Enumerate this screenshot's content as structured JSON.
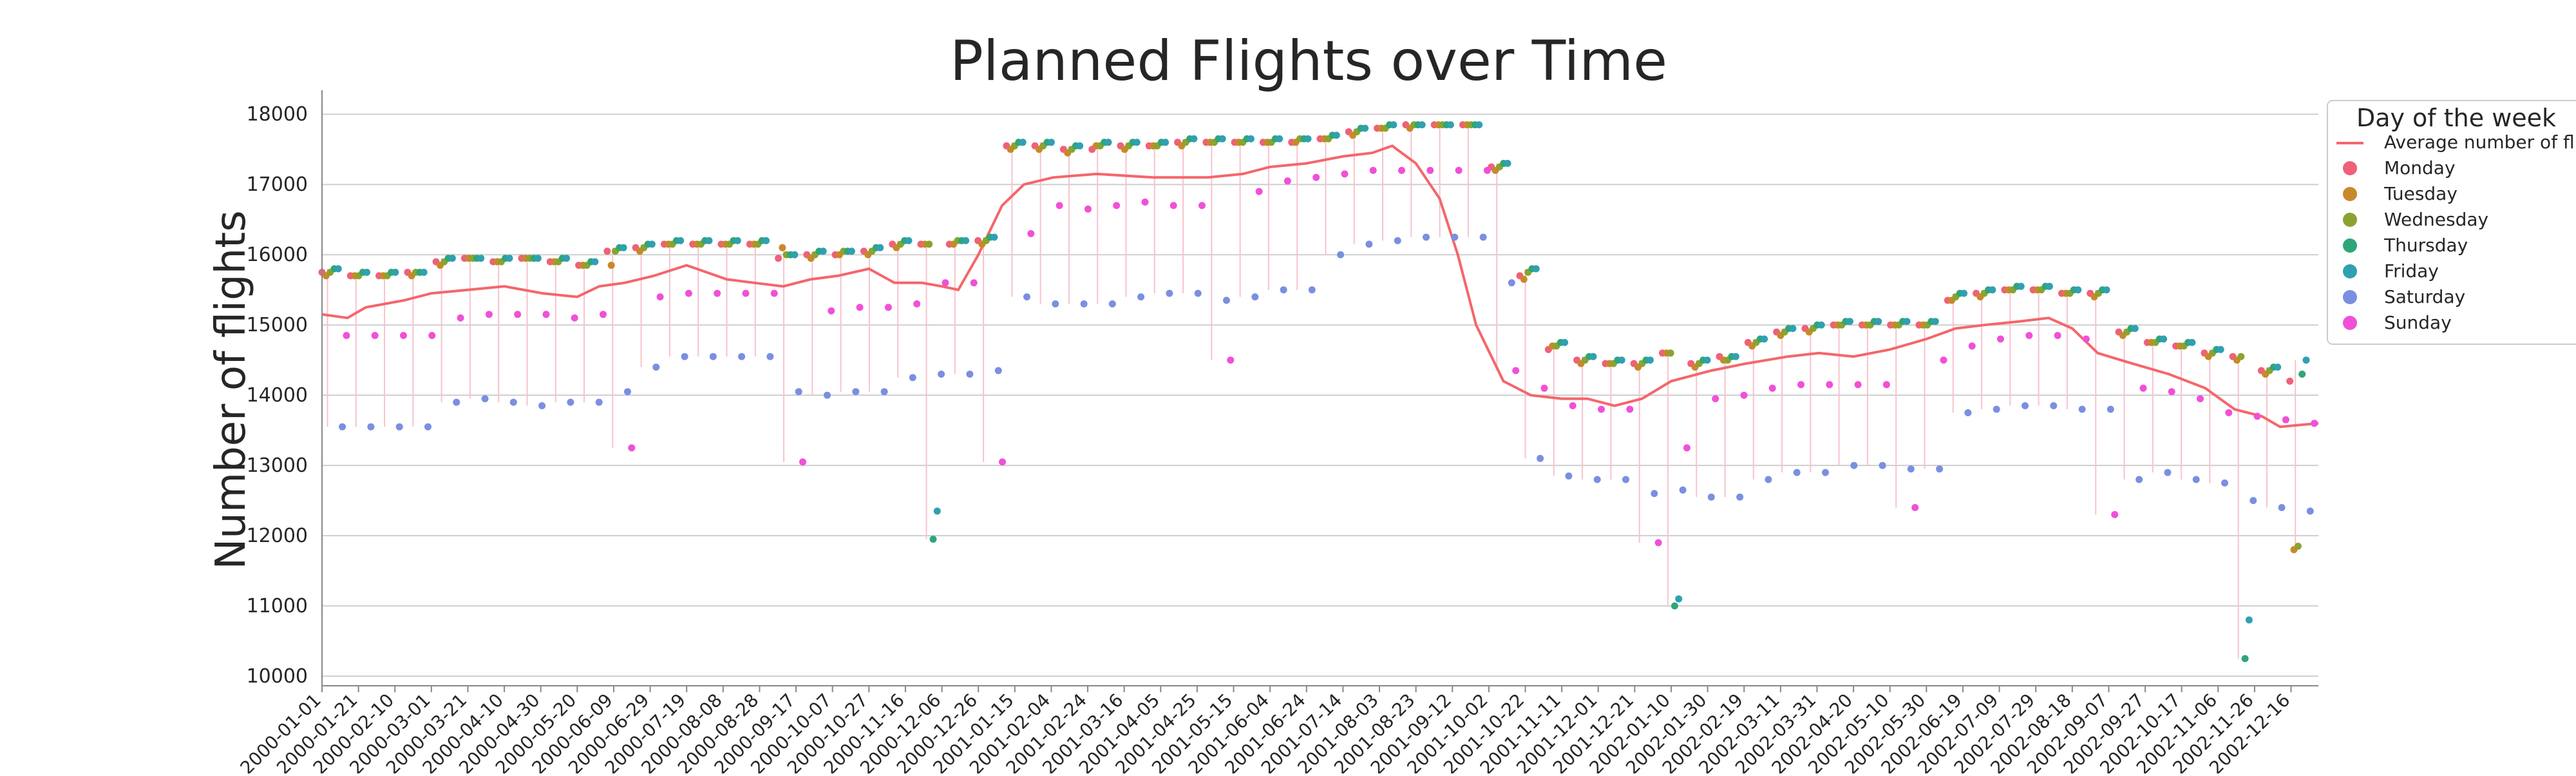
{
  "chart_data": {
    "type": "scatter",
    "title": "Planned Flights over Time",
    "xlabel": "",
    "ylabel": "Number of flights",
    "ylim": [
      9900,
      18250
    ],
    "xlim": [
      "2000-01-01",
      "2002-12-31"
    ],
    "grid": "horizontal",
    "legend_position": "top-right",
    "yticks": [
      10000,
      11000,
      12000,
      13000,
      14000,
      15000,
      16000,
      17000,
      18000
    ],
    "xticks": [
      "2000-01-01",
      "2000-01-21",
      "2000-02-10",
      "2000-03-01",
      "2000-03-21",
      "2000-04-10",
      "2000-04-30",
      "2000-05-20",
      "2000-06-09",
      "2000-06-29",
      "2000-07-19",
      "2000-08-08",
      "2000-08-28",
      "2000-09-17",
      "2000-10-07",
      "2000-10-27",
      "2000-11-16",
      "2000-12-06",
      "2000-12-26",
      "2001-01-15",
      "2001-02-04",
      "2001-02-24",
      "2001-03-16",
      "2001-04-05",
      "2001-04-25",
      "2001-05-15",
      "2001-06-04",
      "2001-06-24",
      "2001-07-14",
      "2001-08-03",
      "2001-08-23",
      "2001-09-12",
      "2001-10-02",
      "2001-10-22",
      "2001-11-11",
      "2001-12-01",
      "2001-12-21",
      "2002-01-10",
      "2002-01-30",
      "2002-02-19",
      "2002-03-11",
      "2002-03-31",
      "2002-04-20",
      "2002-05-10",
      "2002-05-30",
      "2002-06-19",
      "2002-07-09",
      "2002-07-29",
      "2002-08-18",
      "2002-09-07",
      "2002-09-27",
      "2002-10-17",
      "2002-11-06",
      "2002-11-26",
      "2002-12-16"
    ],
    "legend_title": "Day of the week",
    "line_series": {
      "name": "Average number of flights",
      "color": "#f4666b",
      "x": [
        "2000-01-01",
        "2000-01-15",
        "2000-01-25",
        "2000-02-15",
        "2000-03-01",
        "2000-03-21",
        "2000-04-10",
        "2000-05-01",
        "2000-05-20",
        "2000-06-01",
        "2000-06-15",
        "2000-07-01",
        "2000-07-19",
        "2000-07-30",
        "2000-08-10",
        "2000-08-25",
        "2000-09-10",
        "2000-09-25",
        "2000-10-10",
        "2000-10-27",
        "2000-11-10",
        "2000-11-25",
        "2000-12-06",
        "2000-12-15",
        "2000-12-26",
        "2001-01-08",
        "2001-01-20",
        "2001-02-05",
        "2001-03-01",
        "2001-04-01",
        "2001-05-01",
        "2001-05-20",
        "2001-06-04",
        "2001-06-24",
        "2001-07-14",
        "2001-07-30",
        "2001-08-10",
        "2001-08-23",
        "2001-09-05",
        "2001-09-15",
        "2001-09-25",
        "2001-10-10",
        "2001-10-25",
        "2001-11-11",
        "2001-11-25",
        "2001-12-10",
        "2001-12-25",
        "2002-01-10",
        "2002-02-01",
        "2002-02-20",
        "2002-03-15",
        "2002-04-01",
        "2002-04-20",
        "2002-05-10",
        "2002-05-30",
        "2002-06-15",
        "2002-07-01",
        "2002-07-20",
        "2002-08-05",
        "2002-08-18",
        "2002-09-01",
        "2002-09-20",
        "2002-10-10",
        "2002-10-30",
        "2002-11-15",
        "2002-11-30",
        "2002-12-10",
        "2002-12-31"
      ],
      "y": [
        15150,
        15100,
        15250,
        15350,
        15450,
        15500,
        15550,
        15450,
        15400,
        15550,
        15600,
        15700,
        15850,
        15750,
        15650,
        15600,
        15550,
        15650,
        15700,
        15800,
        15600,
        15600,
        15550,
        15500,
        16000,
        16700,
        17000,
        17100,
        17150,
        17100,
        17100,
        17150,
        17250,
        17300,
        17400,
        17450,
        17550,
        17300,
        16800,
        16000,
        15000,
        14200,
        14000,
        13950,
        13950,
        13850,
        13950,
        14200,
        14350,
        14450,
        14550,
        14600,
        14550,
        14650,
        14800,
        14950,
        15000,
        15050,
        15100,
        14950,
        14600,
        14450,
        14300,
        14100,
        13800,
        13700,
        13550,
        13600
      ]
    },
    "series": [
      {
        "name": "Monday",
        "color": "#f0607a",
        "y": [
          15750,
          15700,
          15700,
          15750,
          15900,
          15950,
          15900,
          15950,
          15900,
          15850,
          16050,
          16100,
          16150,
          16150,
          16150,
          16150,
          15950,
          16000,
          16000,
          16050,
          16150,
          16150,
          16150,
          16200,
          17550,
          17550,
          17500,
          17500,
          17550,
          17550,
          17600,
          17600,
          17600,
          17600,
          17600,
          17650,
          17750,
          17800,
          17850,
          17850,
          17850,
          17250,
          15700,
          14650,
          14500,
          14450,
          14450,
          14600,
          14450,
          14550,
          14750,
          14900,
          14950,
          15000,
          15000,
          15000,
          15000,
          15350,
          15450,
          15500,
          15500,
          15450,
          15450,
          14900,
          14750,
          14700,
          14600,
          14550,
          14350,
          14200
        ]
      },
      {
        "name": "Tuesday",
        "color": "#c9882a",
        "y": [
          15700,
          15700,
          15700,
          15700,
          15850,
          15950,
          15900,
          15950,
          15900,
          15850,
          15850,
          16050,
          16150,
          16150,
          16150,
          16150,
          16100,
          15950,
          16000,
          16000,
          16100,
          16150,
          16150,
          16150,
          17500,
          17500,
          17450,
          17550,
          17500,
          17550,
          17550,
          17600,
          17600,
          17600,
          17600,
          17650,
          17700,
          17800,
          17800,
          17850,
          17850,
          17200,
          15650,
          14700,
          14450,
          14450,
          14400,
          14600,
          14400,
          14500,
          14700,
          14850,
          14900,
          15000,
          15000,
          15000,
          15000,
          15350,
          15400,
          15500,
          15500,
          15450,
          15400,
          14850,
          14750,
          14700,
          14550,
          14500,
          14300,
          11800
        ]
      },
      {
        "name": "Wednesday",
        "color": "#8ba32e",
        "y": [
          15750,
          15700,
          15700,
          15750,
          15900,
          15950,
          15900,
          15950,
          15900,
          15850,
          16050,
          16100,
          16150,
          16150,
          16150,
          16150,
          16000,
          16000,
          16050,
          16050,
          16150,
          16150,
          16200,
          16200,
          17550,
          17550,
          17500,
          17550,
          17550,
          17550,
          17600,
          17600,
          17600,
          17600,
          17650,
          17650,
          17750,
          17800,
          17850,
          17850,
          17850,
          17250,
          15750,
          14700,
          14500,
          14450,
          14450,
          14600,
          14450,
          14500,
          14750,
          14900,
          14950,
          15000,
          15000,
          15000,
          15000,
          15400,
          15450,
          15500,
          15500,
          15450,
          15450,
          14900,
          14750,
          14700,
          14600,
          14550,
          14350,
          11850
        ]
      },
      {
        "name": "Thursday",
        "color": "#2ea67a",
        "y": [
          15800,
          15750,
          15750,
          15750,
          15950,
          15950,
          15950,
          15950,
          15950,
          15900,
          16100,
          16150,
          16200,
          16200,
          16200,
          16200,
          16000,
          16050,
          16050,
          16100,
          16200,
          11950,
          16200,
          16250,
          17600,
          17600,
          17550,
          17600,
          17600,
          17600,
          17650,
          17650,
          17650,
          17650,
          17650,
          17700,
          17800,
          17850,
          17850,
          17850,
          17850,
          17300,
          15800,
          14750,
          14550,
          14500,
          14500,
          11000,
          14500,
          14550,
          14800,
          14950,
          15000,
          15050,
          15050,
          15050,
          15050,
          15450,
          15500,
          15550,
          15550,
          15500,
          15500,
          14950,
          14800,
          14750,
          14650,
          10250,
          14400,
          14300
        ]
      },
      {
        "name": "Friday",
        "color": "#30a0b2",
        "y": [
          15800,
          15750,
          15750,
          15750,
          15950,
          15950,
          15950,
          15950,
          15950,
          15900,
          16100,
          16150,
          16200,
          16200,
          16200,
          16200,
          16000,
          16050,
          16050,
          16100,
          16200,
          12350,
          16200,
          16250,
          17600,
          17600,
          17550,
          17600,
          17600,
          17600,
          17650,
          17650,
          17650,
          17650,
          17650,
          17700,
          17800,
          17850,
          17850,
          17850,
          17850,
          17300,
          15800,
          14750,
          14550,
          14500,
          14500,
          11100,
          14500,
          14550,
          14800,
          14950,
          15000,
          15050,
          15050,
          15050,
          15050,
          15450,
          15500,
          15550,
          15550,
          15500,
          15500,
          14950,
          14800,
          14750,
          14650,
          10800,
          14400,
          14500
        ]
      },
      {
        "name": "Saturday",
        "color": "#7a8fe0",
        "y": [
          13550,
          13550,
          13550,
          13550,
          13900,
          13950,
          13900,
          13850,
          13900,
          13900,
          14050,
          14400,
          14550,
          14550,
          14550,
          14550,
          14050,
          14000,
          14050,
          14050,
          14250,
          14300,
          14300,
          14350,
          15400,
          15300,
          15300,
          15300,
          15400,
          15450,
          15450,
          15350,
          15400,
          15500,
          15500,
          16000,
          16150,
          16200,
          16250,
          16250,
          16250,
          15600,
          13100,
          12850,
          12800,
          12800,
          12600,
          12650,
          12550,
          12550,
          12800,
          12900,
          12900,
          13000,
          13000,
          12950,
          12950,
          13750,
          13800,
          13850,
          13850,
          13800,
          13800,
          12800,
          12900,
          12800,
          12750,
          12500,
          12400,
          12350
        ]
      },
      {
        "name": "Sunday",
        "color": "#f050d8",
        "y": [
          14850,
          14850,
          14850,
          14850,
          15100,
          15150,
          15150,
          15150,
          15100,
          15150,
          13250,
          15400,
          15450,
          15450,
          15450,
          15450,
          13050,
          15200,
          15250,
          15250,
          15300,
          15600,
          15600,
          13050,
          16300,
          16700,
          16650,
          16700,
          16750,
          16700,
          16700,
          14500,
          16900,
          17050,
          17100,
          17150,
          17200,
          17200,
          17200,
          17200,
          17200,
          14350,
          14100,
          13850,
          13800,
          13800,
          11900,
          13250,
          13950,
          14000,
          14100,
          14150,
          14150,
          14150,
          14150,
          12400,
          14500,
          14700,
          14800,
          14850,
          14850,
          14800,
          12300,
          14100,
          14050,
          13950,
          13750,
          13700,
          13650,
          13600
        ]
      }
    ]
  }
}
